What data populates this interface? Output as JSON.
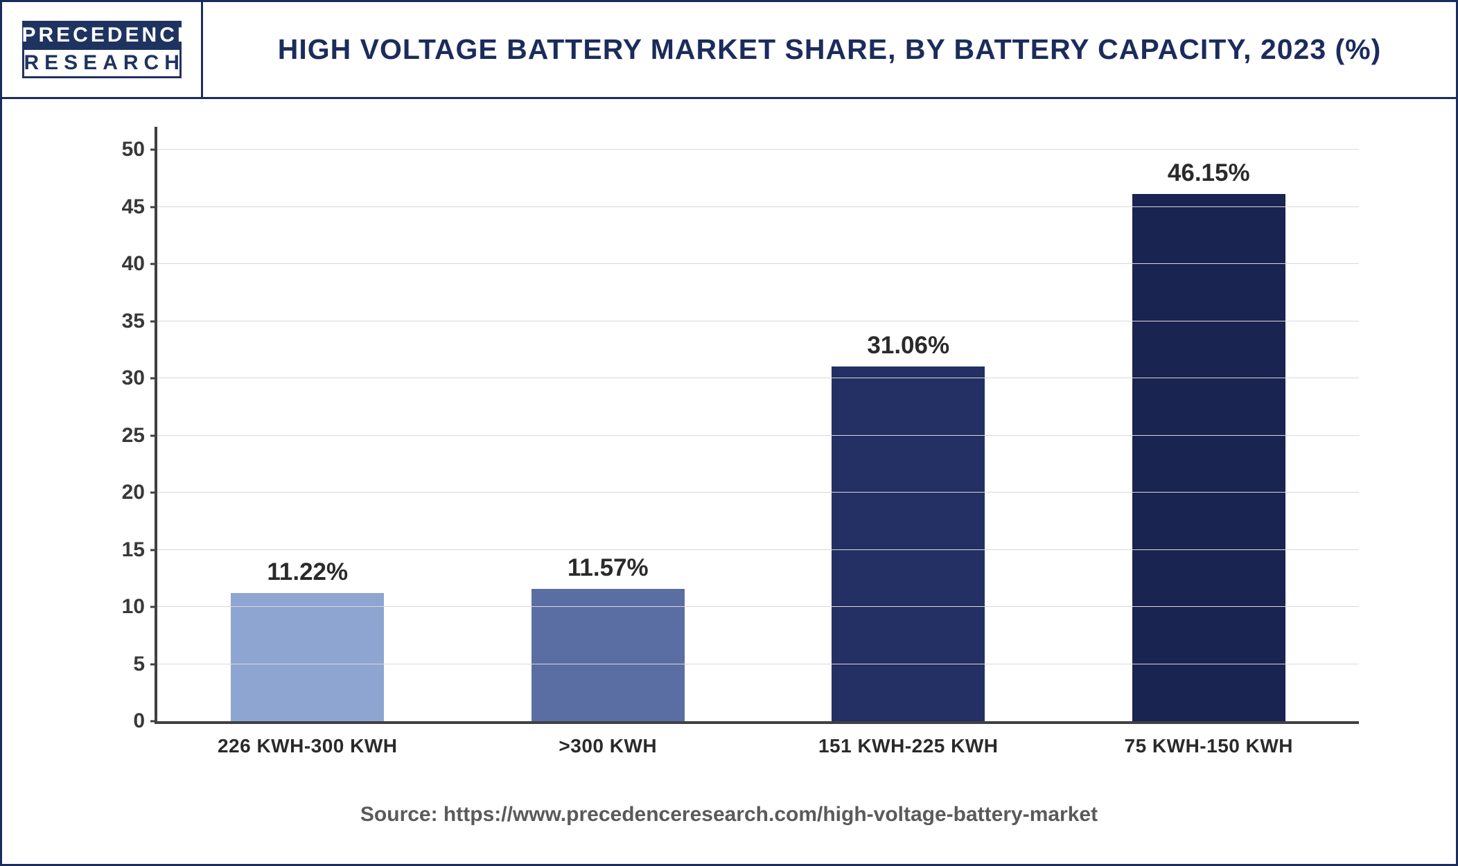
{
  "logo": {
    "line1": "PRECEDENCE",
    "line2": "RESEARCH"
  },
  "title": "HIGH VOLTAGE BATTERY MARKET SHARE, BY BATTERY CAPACITY, 2023 (%)",
  "source": "Source: https://www.precedenceresearch.com/high-voltage-battery-market",
  "chart": {
    "type": "bar",
    "ylim": [
      0,
      52
    ],
    "ytick_step": 5,
    "yticks": [
      0,
      5,
      10,
      15,
      20,
      25,
      30,
      35,
      40,
      45,
      50
    ],
    "grid_color": "#d9d9d9",
    "axis_color": "#404040",
    "background_color": "#ffffff",
    "label_fontsize": 30,
    "value_fontsize": 35,
    "xlabel_fontsize": 28,
    "bar_width": 0.58,
    "categories": [
      "226 KWH-300 KWH",
      ">300 KWH",
      "151 KWH-225 KWH",
      "75 KWH-150 KWH"
    ],
    "values": [
      11.22,
      11.57,
      31.06,
      46.15
    ],
    "value_labels": [
      "11.22%",
      "11.57%",
      "31.06%",
      "46.15%"
    ],
    "bar_colors": [
      "#8fa5d1",
      "#5a6ea3",
      "#242f63",
      "#1a2451"
    ]
  }
}
